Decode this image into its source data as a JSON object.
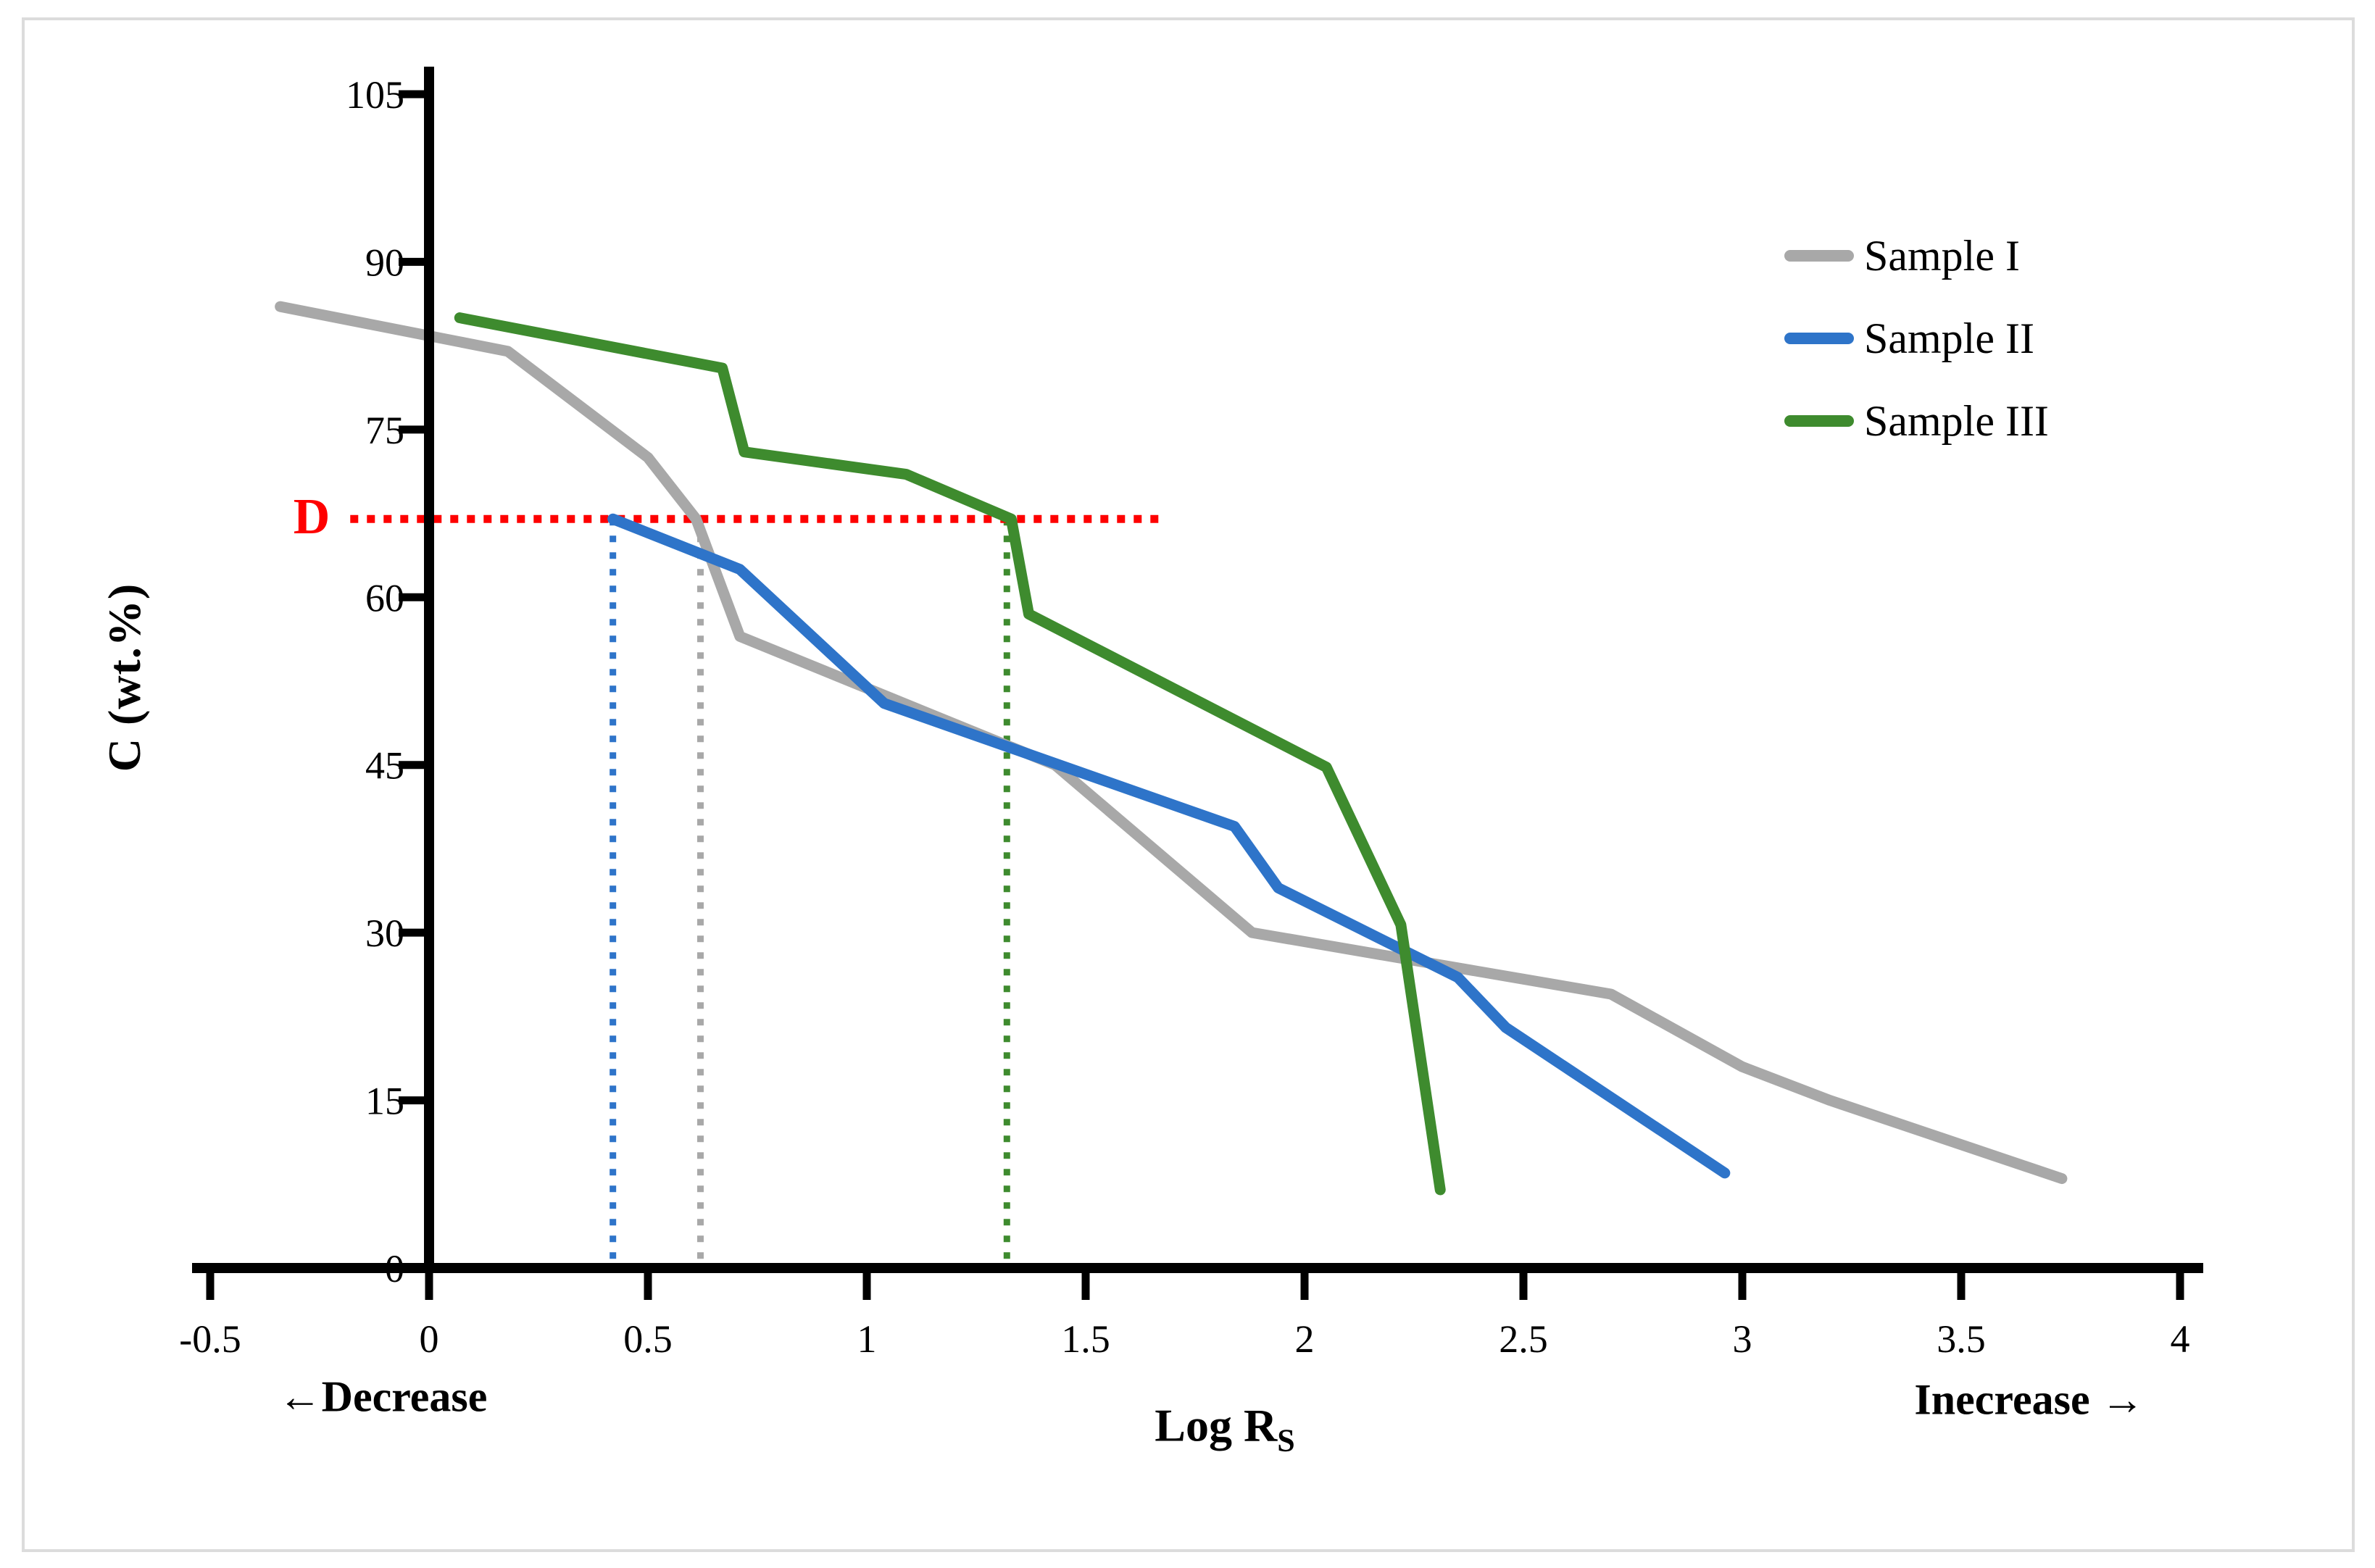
{
  "frame": {
    "border_color": "#dcdcdc",
    "background": "#ffffff"
  },
  "chart_data": {
    "type": "line",
    "title": "",
    "xlabel_main": "Log R",
    "xlabel_sub": "S",
    "ylabel": "C (wt.%)",
    "xlim": [
      -0.5,
      4
    ],
    "ylim": [
      0,
      105
    ],
    "x_ticks": [
      -0.5,
      0,
      0.5,
      1,
      1.5,
      2,
      2.5,
      3,
      3.5,
      4
    ],
    "x_tick_labels": [
      "-0.5",
      "0",
      "0.5",
      "1",
      "1.5",
      "2",
      "2.5",
      "3",
      "3.5",
      "4"
    ],
    "y_ticks": [
      0,
      15,
      30,
      45,
      60,
      75,
      90,
      105
    ],
    "y_tick_labels": [
      "0",
      "15",
      "30",
      "45",
      "60",
      "75",
      "90",
      "105"
    ],
    "grid": false,
    "legend_position": "upper right",
    "series": [
      {
        "name": "Sample I",
        "color": "#a8a8a8",
        "points": [
          [
            -0.34,
            86
          ],
          [
            0.18,
            82
          ],
          [
            0.5,
            72.5
          ],
          [
            0.61,
            67
          ],
          [
            0.71,
            56.5
          ],
          [
            1.43,
            45
          ],
          [
            1.88,
            30
          ],
          [
            2.7,
            24.5
          ],
          [
            3.0,
            18
          ],
          [
            3.2,
            15
          ],
          [
            3.73,
            8
          ]
        ]
      },
      {
        "name": "Sample II",
        "color": "#2e74c9",
        "points": [
          [
            0.42,
            67
          ],
          [
            0.71,
            62.5
          ],
          [
            1.04,
            50.5
          ],
          [
            1.84,
            39.5
          ],
          [
            1.94,
            34
          ],
          [
            2.35,
            26
          ],
          [
            2.46,
            21.5
          ],
          [
            2.96,
            8.5
          ]
        ]
      },
      {
        "name": "Sample III",
        "color": "#3e8b2e",
        "points": [
          [
            0.07,
            85
          ],
          [
            0.67,
            80.5
          ],
          [
            0.72,
            73
          ],
          [
            1.09,
            71
          ],
          [
            1.33,
            67
          ],
          [
            1.37,
            58.5
          ],
          [
            2.05,
            44.8
          ],
          [
            2.22,
            30.7
          ],
          [
            2.31,
            7
          ]
        ]
      }
    ],
    "annotations": {
      "d_label": "D",
      "d_color": "#fe0000",
      "d_value": 67,
      "d_line_x": [
        -0.18,
        1.68
      ],
      "guide_lines": [
        {
          "x": 0.42,
          "color": "#2e74c9"
        },
        {
          "x": 0.62,
          "color": "#a8a8a8"
        },
        {
          "x": 1.32,
          "color": "#3e8b2e"
        }
      ]
    },
    "direction_labels": {
      "left": "←Decrease",
      "right": "Inecrease →"
    }
  }
}
